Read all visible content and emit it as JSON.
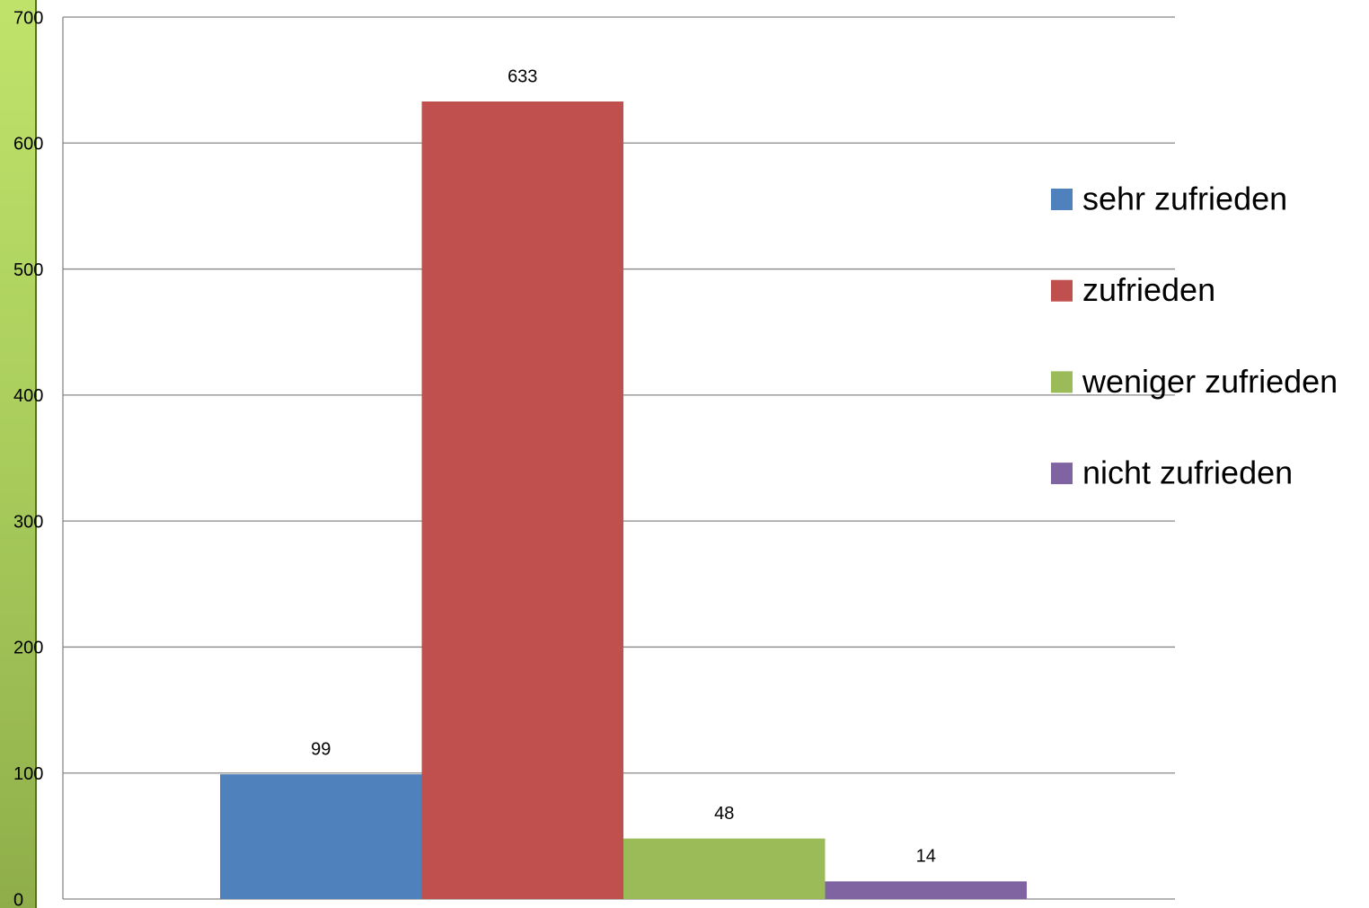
{
  "chart_data": {
    "type": "bar",
    "categories": [
      null
    ],
    "series": [
      {
        "name": "sehr zufrieden",
        "color": "#4f81bd",
        "values": [
          99
        ]
      },
      {
        "name": "zufrieden",
        "color": "#c0504d",
        "values": [
          633
        ]
      },
      {
        "name": "weniger zufrieden",
        "color": "#9bbb59",
        "values": [
          48
        ]
      },
      {
        "name": "nicht zufrieden",
        "color": "#8064a2",
        "values": [
          14
        ]
      }
    ],
    "ylim": [
      0,
      700
    ],
    "yticks": [
      0,
      100,
      200,
      300,
      400,
      500,
      600,
      700
    ],
    "grid": true,
    "legend": "right",
    "data_labels": true
  }
}
